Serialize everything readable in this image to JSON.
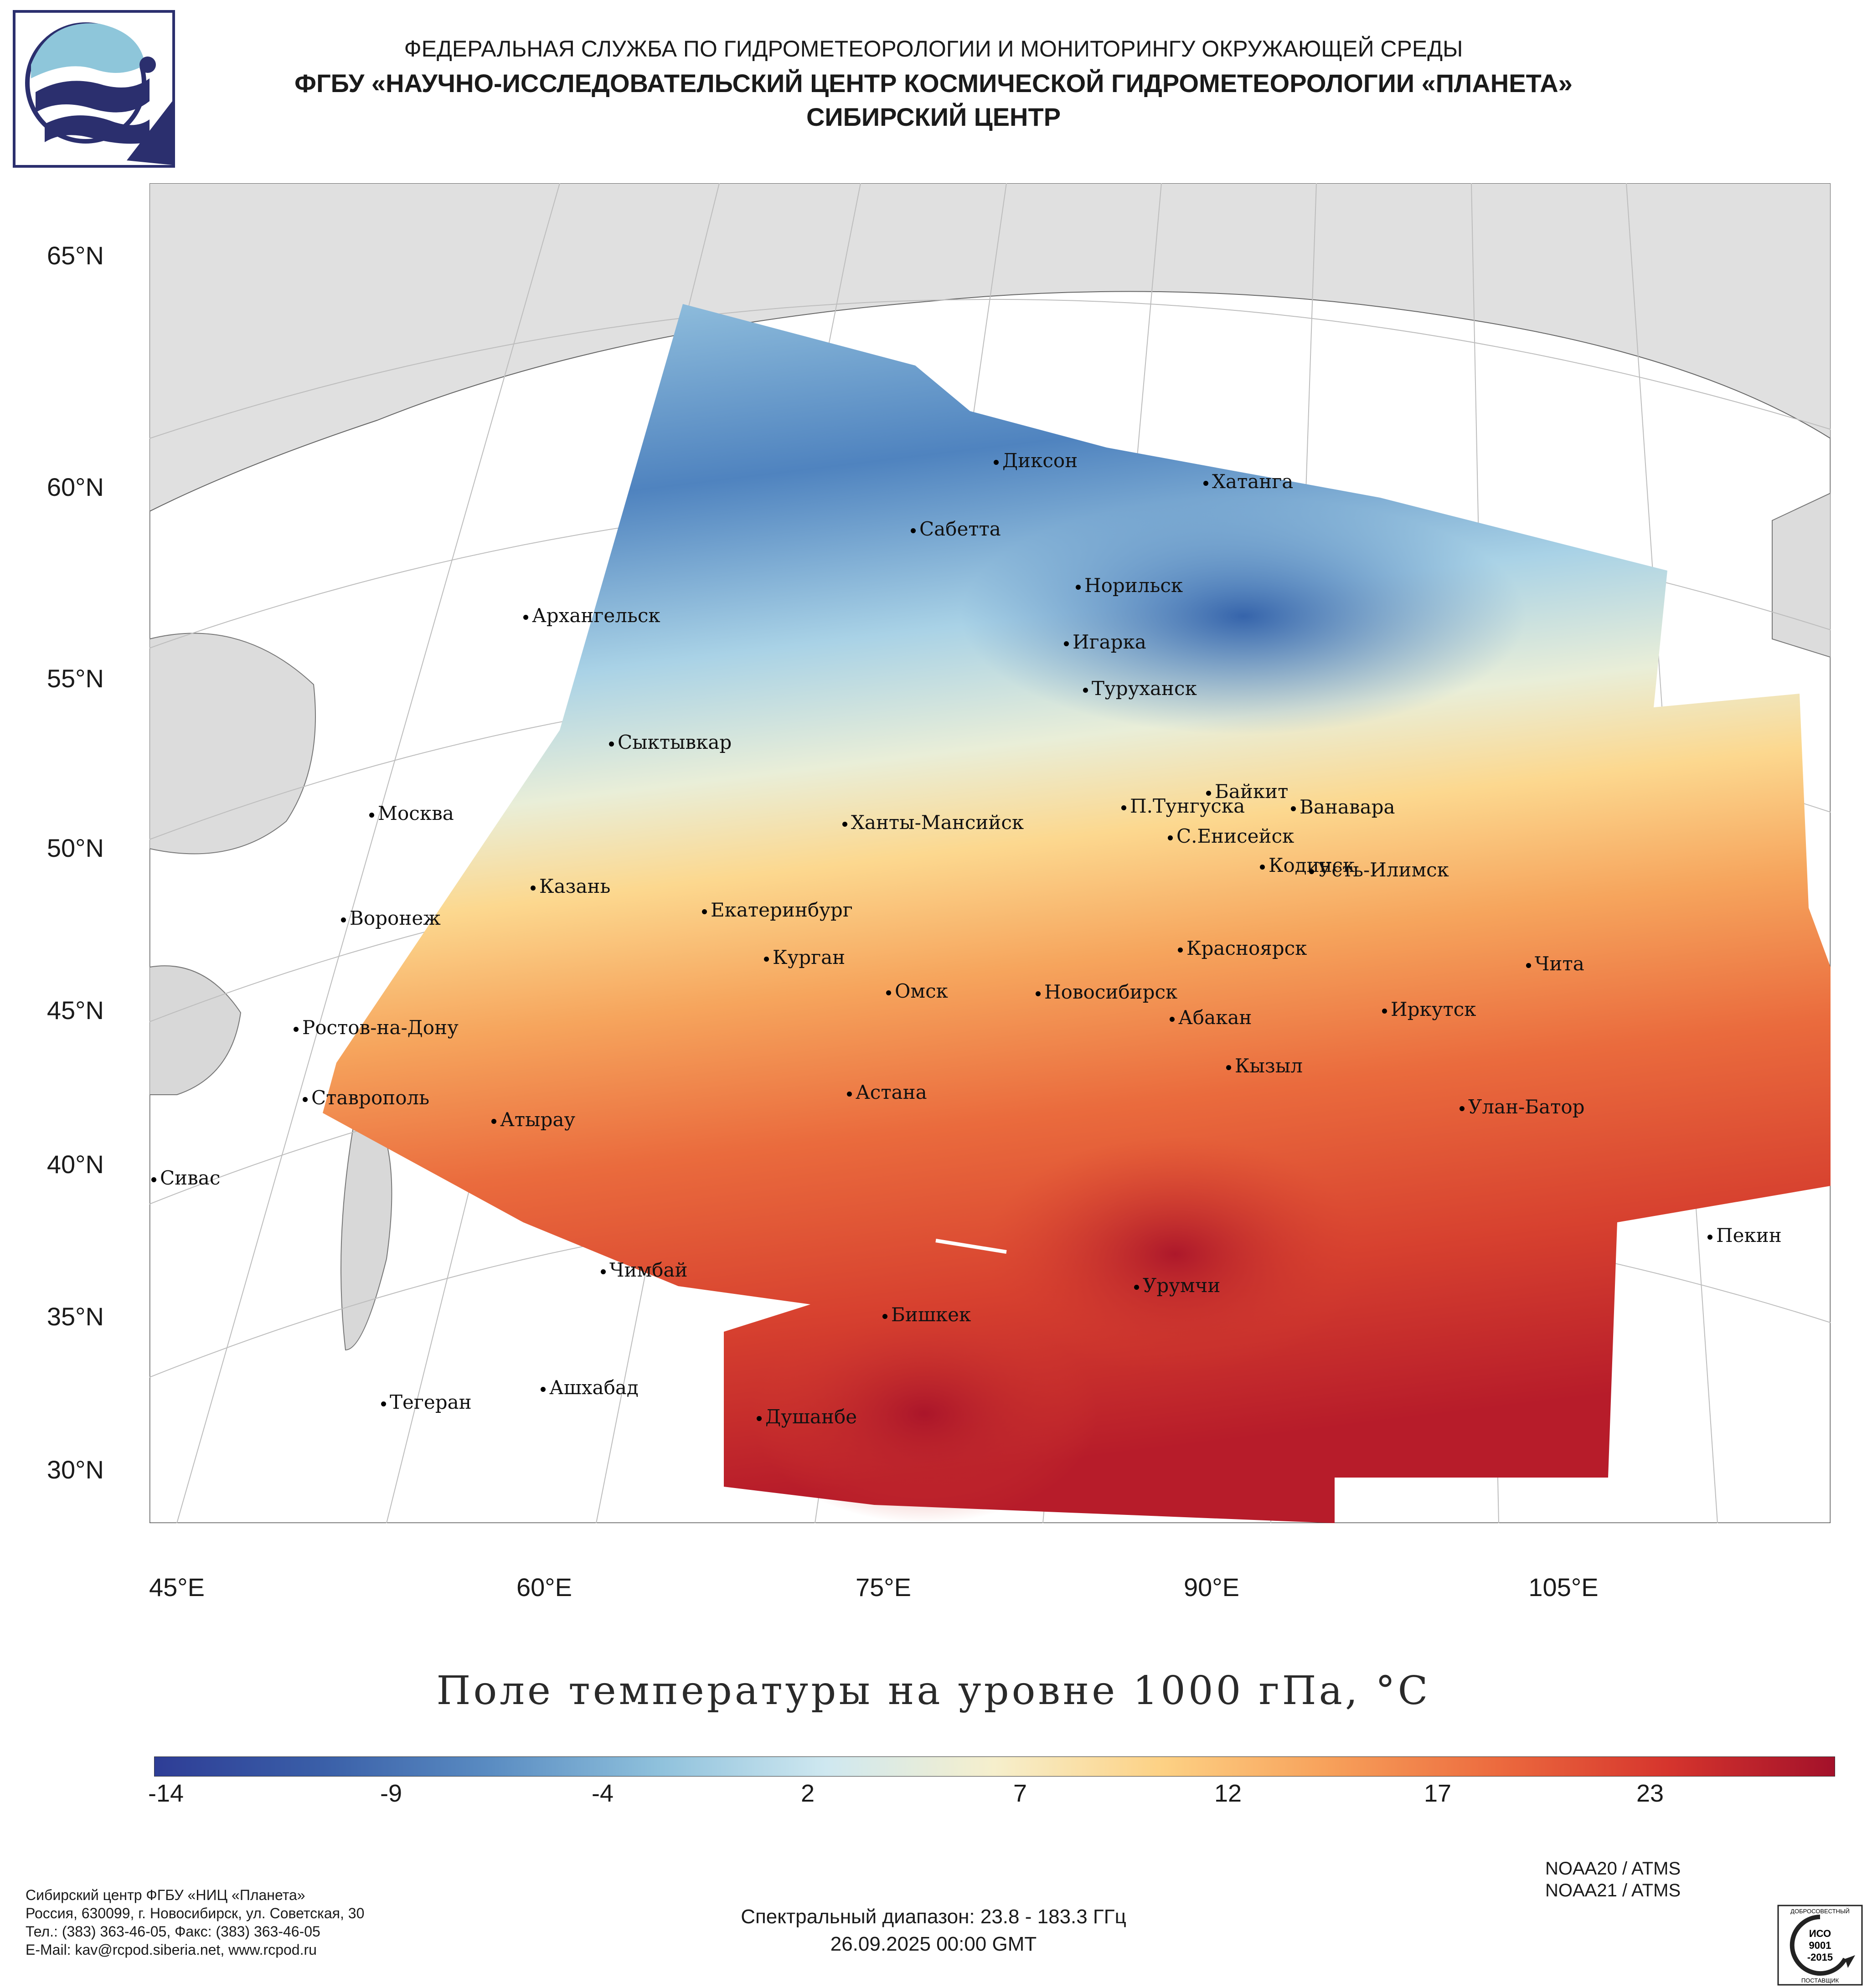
{
  "header": {
    "line1": "ФЕДЕРАЛЬНАЯ СЛУЖБА ПО ГИДРОМЕТЕОРОЛОГИИ И МОНИТОРИНГУ ОКРУЖАЮЩЕЙ СРЕДЫ",
    "line2": "ФГБУ «НАУЧНО-ИССЛЕДОВАТЕЛЬСКИЙ ЦЕНТР КОСМИЧЕСКОЙ ГИДРОМЕТЕОРОЛОГИИ «ПЛАНЕТА»",
    "line3": "СИБИРСКИЙ ЦЕНТР"
  },
  "map": {
    "lat_labels": [
      "65°N",
      "60°N",
      "55°N",
      "50°N",
      "45°N",
      "40°N",
      "35°N",
      "30°N"
    ],
    "lon_labels": [
      "45°E",
      "60°E",
      "75°E",
      "90°E",
      "105°E"
    ],
    "cities": [
      "Диксон",
      "Хатанга",
      "Сабетта",
      "Норильск",
      "Архангельск",
      "Игарка",
      "Туруханск",
      "Сыктывкар",
      "Байкит",
      "Москва",
      "П.Тунгуска",
      "Ванавара",
      "Ханты-Мансийск",
      "С.Енисейск",
      "Кодинск",
      "Усть-Илимск",
      "Казань",
      "Екатеринбург",
      "Воронеж",
      "Красноярск",
      "Курган",
      "Чита",
      "Омск",
      "Новосибирск",
      "Иркутск",
      "Ростов-на-Дону",
      "Абакан",
      "Кызыл",
      "Астана",
      "Ставрополь",
      "Улан-Батор",
      "Атырау",
      "Сивас",
      "Пекин",
      "Чимбай",
      "Урумчи",
      "Бишкек",
      "Ашхабад",
      "Тегеран",
      "Душанбе"
    ]
  },
  "title": "Поле температуры на уровне 1000 гПа, °С",
  "colorbar": {
    "ticks": [
      "-14",
      "-9",
      "-4",
      "2",
      "7",
      "12",
      "17",
      "23"
    ],
    "min": -16,
    "max": 27,
    "colors": [
      "#2e3d96",
      "#3a5fa8",
      "#5a8cc2",
      "#8fc1dc",
      "#cfe8f0",
      "#f6efcc",
      "#fdd184",
      "#f7a05a",
      "#ec6a3e",
      "#d6352d",
      "#a3112a"
    ]
  },
  "footer": {
    "org": [
      "Сибирский центр ФГБУ «НИЦ «Планета»",
      "Россия, 630099, г. Новосибирск, ул. Советская, 30",
      "Тел.: (383) 363-46-05, Факс: (383) 363-46-05",
      "E-Mail: kav@rcpod.siberia.net, www.rcpod.ru"
    ],
    "satellites": [
      "NOAA20 / ATMS",
      "NOAA21 / ATMS"
    ],
    "spectral": "Спектральный диапазон: 23.8 - 183.3 ГГц",
    "datetime": "26.09.2025 00:00 GMT",
    "iso_text": [
      "ДОБРОСОВЕСТНЫЙ",
      "ИСО",
      "9001",
      "-2015",
      "ПОСТАВЩИК"
    ]
  }
}
